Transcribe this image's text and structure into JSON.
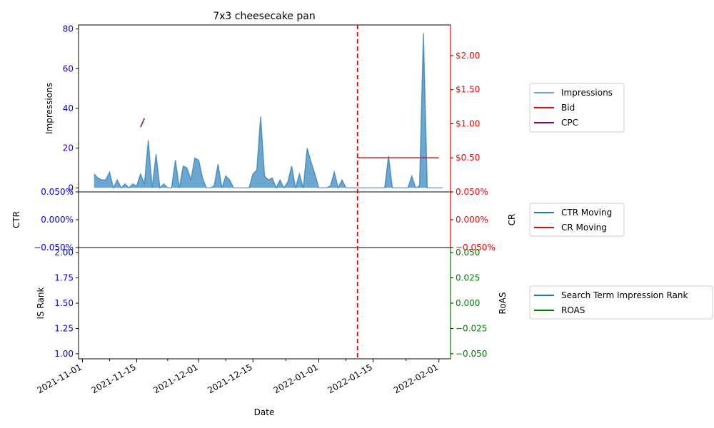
{
  "chart_data": {
    "type": "multi-panel time series",
    "title": "7x3 cheesecake pan",
    "xlabel": "Date",
    "x_ticks": [
      "2021-11-01",
      "2021-11-15",
      "2021-12-01",
      "2021-12-15",
      "2022-01-01",
      "2022-01-15",
      "2022-02-01"
    ],
    "x_range": [
      "2021-10-31",
      "2022-02-04"
    ],
    "vertical_marker": {
      "date": "2022-01-11",
      "style": "dashed",
      "color": "#ff0000"
    },
    "panels": [
      {
        "id": "top",
        "left_axis": {
          "label": "Impressions",
          "color": "#0000ff",
          "range": [
            -2,
            82
          ],
          "ticks": [
            "0",
            "20",
            "40",
            "60",
            "80"
          ],
          "tick_values": [
            0,
            20,
            40,
            60,
            80
          ]
        },
        "right_axis": {
          "label": "",
          "color": "#ff0000",
          "range": [
            0,
            2.45
          ],
          "ticks": [
            "$0.50",
            "$1.00",
            "$1.50",
            "$2.00"
          ],
          "tick_values": [
            0.5,
            1.0,
            1.5,
            2.0
          ]
        },
        "legend": [
          "Impressions",
          "Bid",
          "CPC"
        ],
        "legend_colors": [
          "#6aa3d4",
          "#ff0000",
          "#800080"
        ],
        "series": [
          {
            "name": "Impressions",
            "axis": "left",
            "style": "area",
            "color": "#1f77b4",
            "x": [
              "2021-11-04",
              "2021-11-05",
              "2021-11-06",
              "2021-11-07",
              "2021-11-08",
              "2021-11-09",
              "2021-11-10",
              "2021-11-11",
              "2021-11-12",
              "2021-11-13",
              "2021-11-14",
              "2021-11-15",
              "2021-11-16",
              "2021-11-17",
              "2021-11-18",
              "2021-11-19",
              "2021-11-20",
              "2021-11-21",
              "2021-11-22",
              "2021-11-23",
              "2021-11-24",
              "2021-11-25",
              "2021-11-26",
              "2021-11-27",
              "2021-11-28",
              "2021-11-29",
              "2021-11-30",
              "2021-12-01",
              "2021-12-02",
              "2021-12-03",
              "2021-12-04",
              "2021-12-05",
              "2021-12-06",
              "2021-12-07",
              "2021-12-08",
              "2021-12-09",
              "2021-12-10",
              "2021-12-11",
              "2021-12-12",
              "2021-12-13",
              "2021-12-14",
              "2021-12-15",
              "2021-12-16",
              "2021-12-17",
              "2021-12-18",
              "2021-12-19",
              "2021-12-20",
              "2021-12-21",
              "2021-12-22",
              "2021-12-23",
              "2021-12-24",
              "2021-12-25",
              "2021-12-26",
              "2021-12-27",
              "2021-12-28",
              "2021-12-29",
              "2021-12-30",
              "2021-12-31",
              "2022-01-01",
              "2022-01-02",
              "2022-01-03",
              "2022-01-04",
              "2022-01-05",
              "2022-01-06",
              "2022-01-07",
              "2022-01-08",
              "2022-01-09",
              "2022-01-10",
              "2022-01-11",
              "2022-01-12",
              "2022-01-13",
              "2022-01-14",
              "2022-01-15",
              "2022-01-16",
              "2022-01-17",
              "2022-01-18",
              "2022-01-19",
              "2022-01-20",
              "2022-01-21",
              "2022-01-22",
              "2022-01-23",
              "2022-01-24",
              "2022-01-25",
              "2022-01-26",
              "2022-01-27",
              "2022-01-28",
              "2022-01-29",
              "2022-01-30",
              "2022-01-31",
              "2022-02-01",
              "2022-02-02"
            ],
            "values": [
              7,
              5,
              4,
              4,
              8,
              0,
              4,
              0,
              2,
              0,
              2,
              1,
              7,
              2,
              24,
              0,
              17,
              0,
              2,
              0,
              0,
              14,
              0,
              11,
              10,
              4,
              15,
              14,
              5,
              0,
              0,
              1,
              12,
              0,
              6,
              4,
              0,
              0,
              0,
              0,
              0,
              7,
              9,
              36,
              6,
              4,
              5,
              0,
              4,
              0,
              3,
              11,
              0,
              7,
              0,
              20,
              13,
              7,
              0,
              0,
              0,
              1,
              8,
              0,
              4,
              0,
              0,
              0,
              0,
              0,
              0,
              0,
              0,
              0,
              0,
              0,
              16,
              0,
              0,
              0,
              0,
              0,
              6,
              0,
              1,
              78,
              0,
              0,
              0,
              0,
              0
            ]
          },
          {
            "name": "Bid",
            "axis": "right",
            "style": "line",
            "color": "#ff0000",
            "x": [
              "2022-01-11",
              "2022-02-01"
            ],
            "values": [
              0.5,
              0.5
            ]
          },
          {
            "name": "CPC",
            "axis": "right",
            "style": "line",
            "color": "#800080",
            "x": [
              "2021-11-16",
              "2021-11-17"
            ],
            "values": [
              0.95,
              1.08
            ]
          }
        ]
      },
      {
        "id": "middle",
        "left_axis": {
          "label": "CTR",
          "color": "#0000ff",
          "range": [
            -0.05,
            0.05
          ],
          "ticks": [
            "−0.050%",
            "0.000%",
            "0.050%"
          ],
          "tick_values": [
            -0.05,
            0,
            0.05
          ]
        },
        "right_axis": {
          "label": "CR",
          "color": "#ff0000",
          "range": [
            -0.05,
            0.05
          ],
          "ticks": [
            "−0.050%",
            "0.000%",
            "0.050%"
          ],
          "tick_values": [
            -0.05,
            0,
            0.05
          ]
        },
        "legend": [
          "CTR Moving",
          "CR Moving"
        ],
        "legend_colors": [
          "#1f77b4",
          "#ff0000"
        ],
        "series": []
      },
      {
        "id": "bottom",
        "left_axis": {
          "label": "IS Rank",
          "color": "#0000ff",
          "range": [
            0.95,
            2.05
          ],
          "ticks": [
            "1.00",
            "1.25",
            "1.50",
            "1.75",
            "2.00"
          ],
          "tick_values": [
            1.0,
            1.25,
            1.5,
            1.75,
            2.0
          ]
        },
        "right_axis": {
          "label": "RoAS",
          "color": "#008000",
          "range": [
            -0.055,
            0.055
          ],
          "ticks": [
            "−0.050",
            "−0.025",
            "0.000",
            "0.025",
            "0.050"
          ],
          "tick_values": [
            -0.05,
            -0.025,
            0,
            0.025,
            0.05
          ]
        },
        "legend": [
          "Search Term Impression Rank",
          "ROAS"
        ],
        "legend_colors": [
          "#1f77b4",
          "#008000"
        ],
        "series": []
      }
    ]
  }
}
